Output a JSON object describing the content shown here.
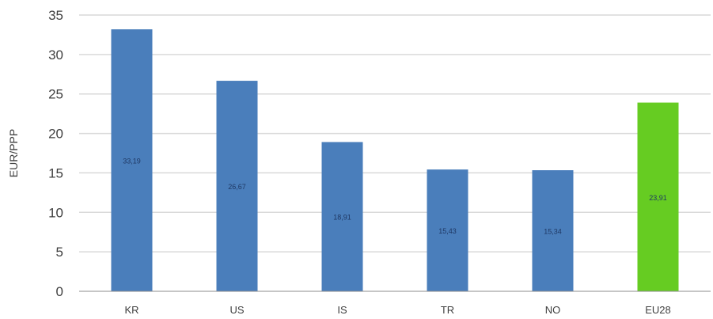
{
  "chart_data": {
    "type": "bar",
    "categories": [
      "KR",
      "US",
      "IS",
      "TR",
      "NO",
      "EU28"
    ],
    "values": [
      33.19,
      26.67,
      18.91,
      15.43,
      15.34,
      23.91
    ],
    "data_labels": [
      "33,19",
      "26,67",
      "18,91",
      "15,43",
      "15,34",
      "23,91"
    ],
    "bar_colors": [
      "#4a7ebb",
      "#4a7ebb",
      "#4a7ebb",
      "#4a7ebb",
      "#4a7ebb",
      "#66cc22"
    ],
    "title": "",
    "xlabel": "",
    "ylabel": "EUR/PPP",
    "ylim": [
      0,
      35
    ],
    "yticks": [
      0,
      5,
      10,
      15,
      20,
      25,
      30,
      35
    ],
    "grid": true,
    "legend": "none"
  }
}
